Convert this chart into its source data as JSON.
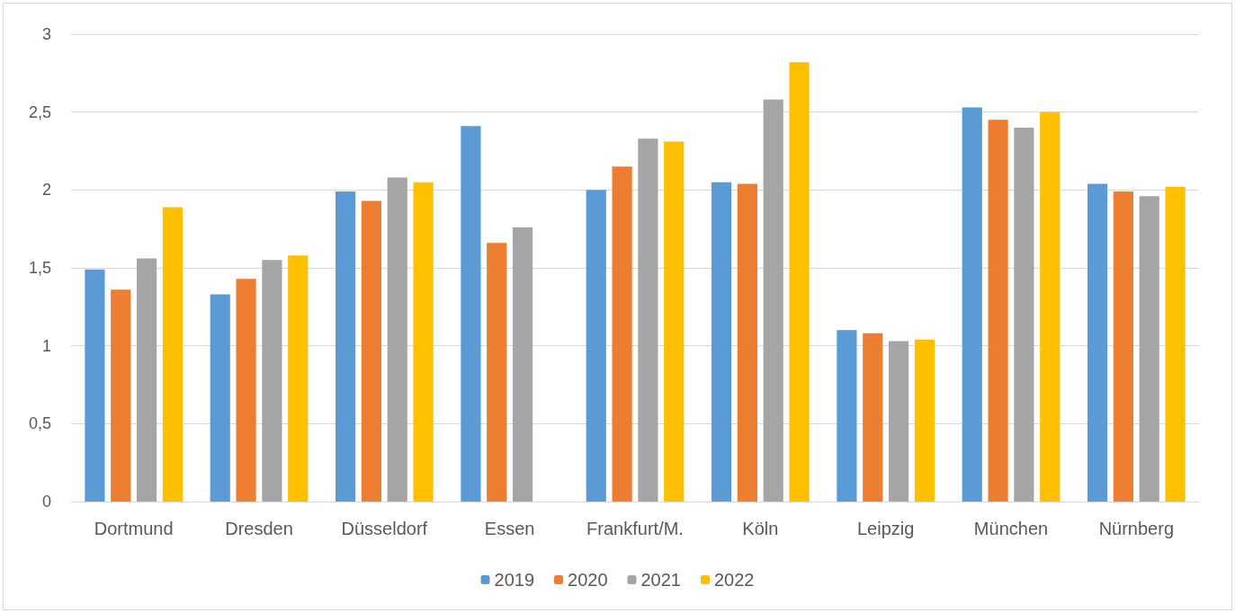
{
  "chart_data": {
    "type": "bar",
    "categories": [
      "Dortmund",
      "Dresden",
      "Düsseldorf",
      "Essen",
      "Frankfurt/M.",
      "Köln",
      "Leipzig",
      "München",
      "Nürnberg"
    ],
    "series": [
      {
        "name": "2019",
        "color": "#5b9bd5",
        "values": [
          1.49,
          1.33,
          1.99,
          2.41,
          2.0,
          2.05,
          1.1,
          2.53,
          2.04
        ]
      },
      {
        "name": "2020",
        "color": "#ed7d31",
        "values": [
          1.36,
          1.43,
          1.93,
          1.66,
          2.15,
          2.04,
          1.08,
          2.45,
          1.99
        ]
      },
      {
        "name": "2021",
        "color": "#a5a5a5",
        "values": [
          1.56,
          1.55,
          2.08,
          1.76,
          2.33,
          2.58,
          1.03,
          2.4,
          1.96
        ]
      },
      {
        "name": "2022",
        "color": "#ffc000",
        "values": [
          1.89,
          1.58,
          2.05,
          null,
          2.31,
          2.82,
          1.04,
          2.5,
          2.02
        ]
      }
    ],
    "ylim": [
      0,
      3
    ],
    "yticks": [
      0,
      {
        "value": 0.5,
        "label": "0,5"
      },
      1,
      {
        "value": 1.5,
        "label": "1,5"
      },
      2,
      {
        "value": 2.5,
        "label": "2,5"
      },
      3
    ],
    "grid": "y",
    "legend": "bottom"
  }
}
